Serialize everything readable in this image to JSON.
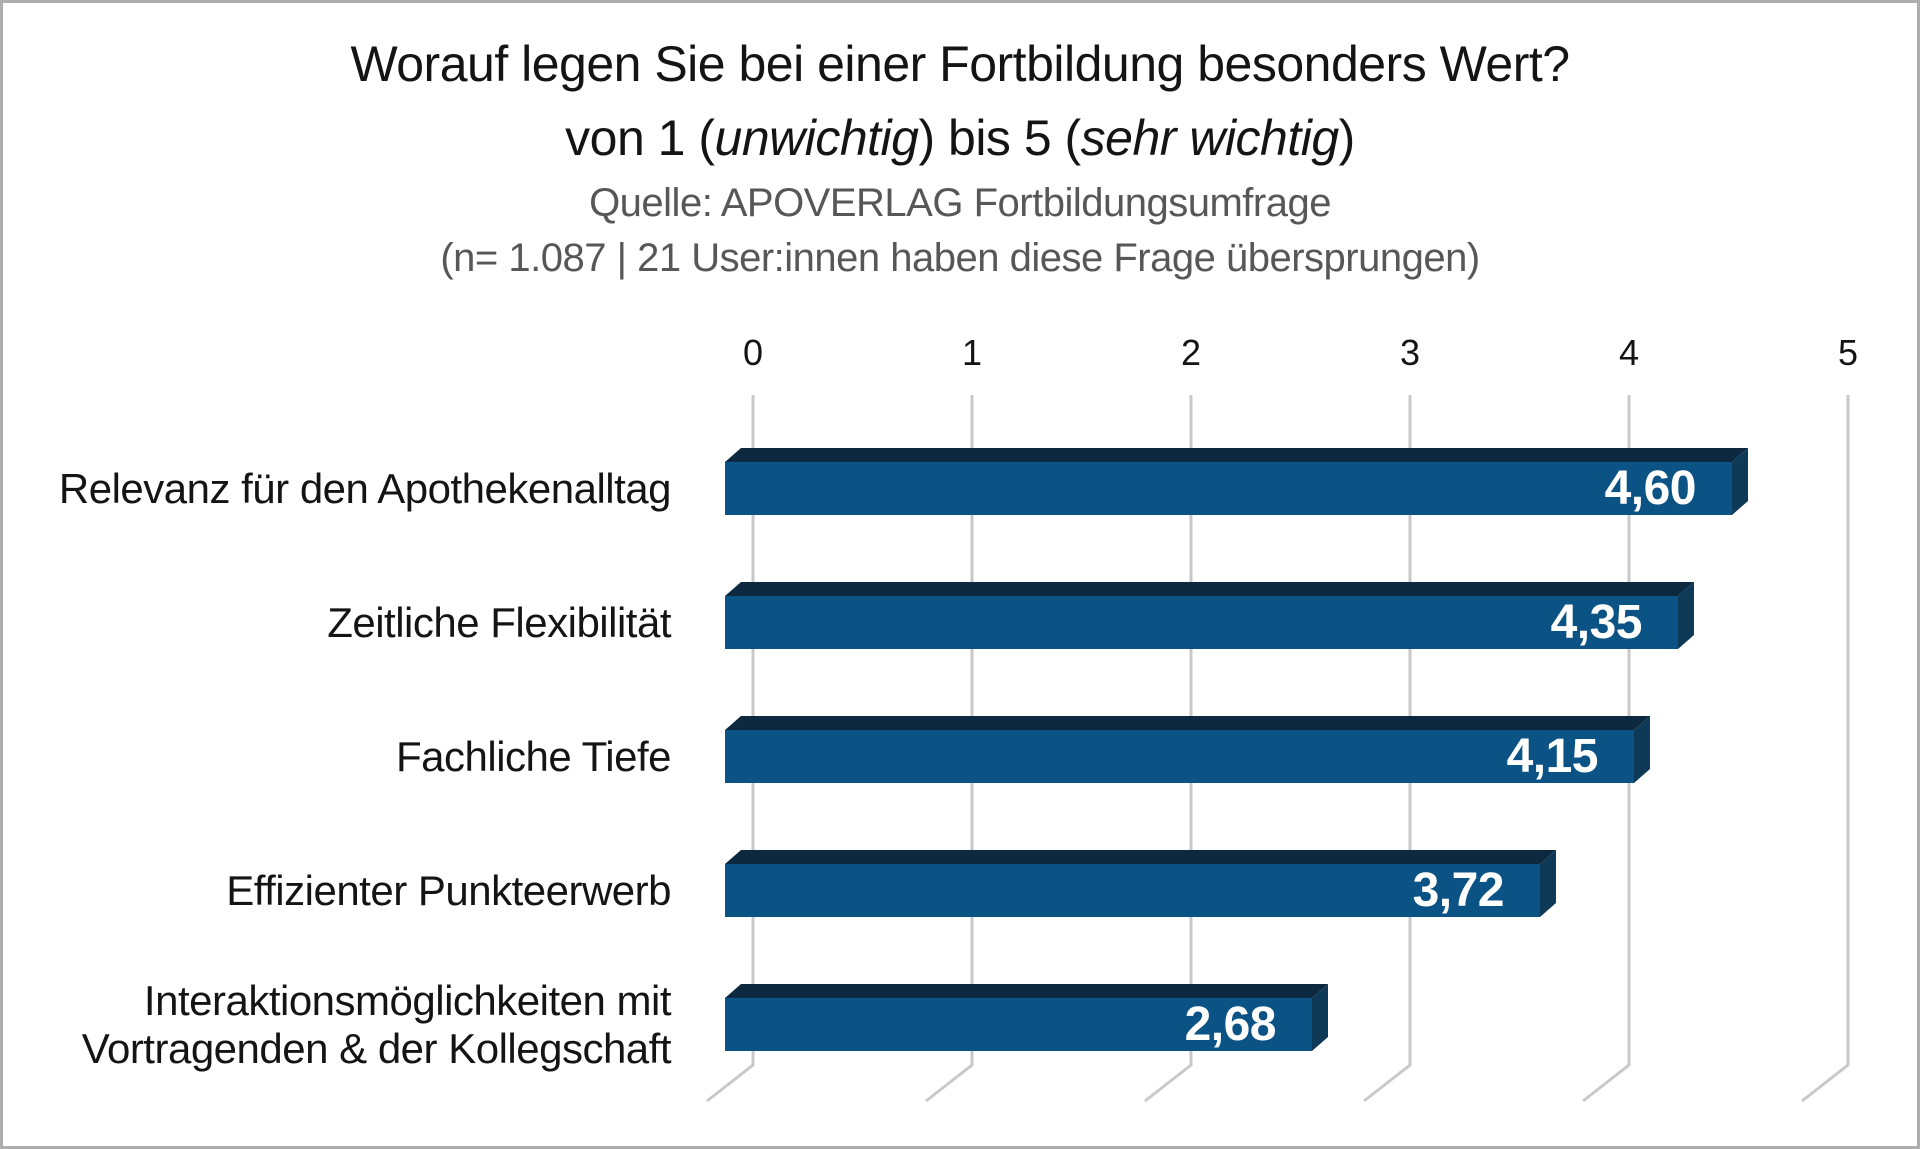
{
  "chart_data": {
    "type": "bar",
    "orientation": "horizontal",
    "style": "3d",
    "title": "Worauf legen Sie bei einer Fortbildung besonders Wert?",
    "subtitle_plain": "von 1 (unwichtig) bis 5 (sehr wichtig)",
    "subtitle_parts": {
      "p1": "von 1 (",
      "em1": "unwichtig",
      "p2": ") bis 5 (",
      "em2": "sehr wichtig",
      "p3": ")"
    },
    "source": "Quelle: APOVERLAG Fortbildungsumfrage",
    "sample_note": "(n= 1.087 | 21 User:innen haben diese Frage übersprungen)",
    "categories": [
      "Relevanz für den Apothekenalltag",
      "Zeitliche Flexibilität",
      "Fachliche Tiefe",
      "Effizienter Punkteerwerb",
      "Interaktionsmöglichkeiten mit\nVortragenden & der Kollegschaft"
    ],
    "values": [
      4.6,
      4.35,
      4.15,
      3.72,
      2.68
    ],
    "value_labels": [
      "4,60",
      "4,35",
      "4,15",
      "3,72",
      "2,68"
    ],
    "xlabel": "",
    "ylabel": "",
    "axis": {
      "min": 0,
      "max": 5,
      "ticks": [
        0,
        1,
        2,
        3,
        4,
        5
      ],
      "position": "top"
    },
    "grid": true,
    "legend": false,
    "colors": {
      "bar_front": "#0b5384",
      "bar_top": "#0c2940",
      "bar_side": "#0e3a58",
      "grid_line": "#c9c9c9",
      "title_text": "#141414",
      "subtitle_text": "#575757",
      "value_text": "#ffffff",
      "category_text": "#141414",
      "frame_border": "#adadad"
    }
  }
}
